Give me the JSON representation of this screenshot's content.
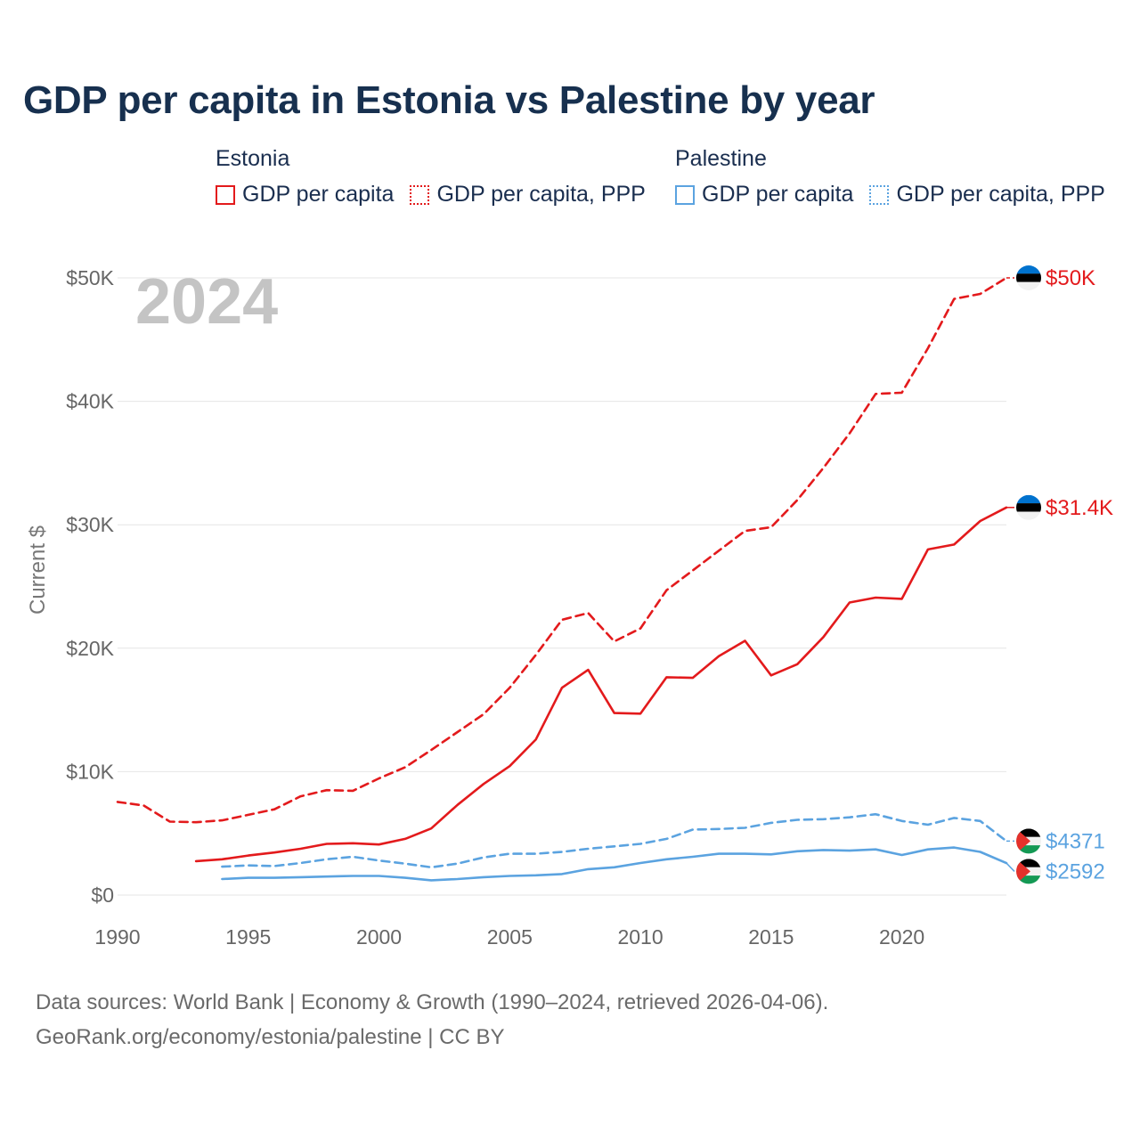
{
  "title": "GDP per capita in Estonia vs Palestine by year",
  "legend": {
    "groups": [
      {
        "name": "Estonia",
        "color": "#e31a1c",
        "items": [
          "GDP per capita",
          "GDP per capita, PPP"
        ]
      },
      {
        "name": "Palestine",
        "color": "#5ba3e0",
        "items": [
          "GDP per capita",
          "GDP per capita, PPP"
        ]
      }
    ]
  },
  "year_label": "2024",
  "footer": {
    "line1": "Data sources: World Bank | Economy & Growth (1990–2024, retrieved 2026-04-06).",
    "line2": "GeoRank.org/economy/estonia/palestine | CC BY"
  },
  "chart_data": {
    "type": "line",
    "title": "GDP per capita in Estonia vs Palestine by year",
    "ylabel": "Current $",
    "xlabel": "",
    "xlim": [
      1990,
      2024
    ],
    "ylim": [
      0,
      50000
    ],
    "x_ticks": [
      1990,
      1995,
      2000,
      2005,
      2010,
      2015,
      2020
    ],
    "y_ticks": [
      {
        "value": 0,
        "label": "$0"
      },
      {
        "value": 10000,
        "label": "$10K"
      },
      {
        "value": 20000,
        "label": "$20K"
      },
      {
        "value": 30000,
        "label": "$30K"
      },
      {
        "value": 40000,
        "label": "$40K"
      },
      {
        "value": 50000,
        "label": "$50K"
      }
    ],
    "grid": true,
    "series": [
      {
        "name": "Estonia GDP per capita, PPP",
        "country": "Estonia",
        "style": "dashed",
        "color": "#e31a1c",
        "end_label": "$50K",
        "flag": "estonia",
        "points": [
          [
            1990,
            7550
          ],
          [
            1991,
            7250
          ],
          [
            1992,
            5950
          ],
          [
            1993,
            5900
          ],
          [
            1994,
            6050
          ],
          [
            1995,
            6500
          ],
          [
            1996,
            6950
          ],
          [
            1997,
            8000
          ],
          [
            1998,
            8500
          ],
          [
            1999,
            8450
          ],
          [
            2000,
            9450
          ],
          [
            2001,
            10350
          ],
          [
            2002,
            11750
          ],
          [
            2003,
            13200
          ],
          [
            2004,
            14650
          ],
          [
            2005,
            16800
          ],
          [
            2006,
            19450
          ],
          [
            2007,
            22300
          ],
          [
            2008,
            22850
          ],
          [
            2009,
            20550
          ],
          [
            2010,
            21600
          ],
          [
            2011,
            24700
          ],
          [
            2012,
            26300
          ],
          [
            2013,
            27900
          ],
          [
            2014,
            29500
          ],
          [
            2015,
            29800
          ],
          [
            2016,
            32000
          ],
          [
            2017,
            34600
          ],
          [
            2018,
            37400
          ],
          [
            2019,
            40600
          ],
          [
            2020,
            40700
          ],
          [
            2021,
            44300
          ],
          [
            2022,
            48300
          ],
          [
            2023,
            48700
          ],
          [
            2024,
            50000
          ]
        ]
      },
      {
        "name": "Estonia GDP per capita",
        "country": "Estonia",
        "style": "solid",
        "color": "#e31a1c",
        "end_label": "$31.4K",
        "flag": "estonia",
        "points": [
          [
            1993,
            2750
          ],
          [
            1994,
            2900
          ],
          [
            1995,
            3200
          ],
          [
            1996,
            3450
          ],
          [
            1997,
            3750
          ],
          [
            1998,
            4150
          ],
          [
            1999,
            4200
          ],
          [
            2000,
            4100
          ],
          [
            2001,
            4550
          ],
          [
            2002,
            5400
          ],
          [
            2003,
            7300
          ],
          [
            2004,
            9000
          ],
          [
            2005,
            10450
          ],
          [
            2006,
            12600
          ],
          [
            2007,
            16800
          ],
          [
            2008,
            18250
          ],
          [
            2009,
            14750
          ],
          [
            2010,
            14700
          ],
          [
            2011,
            17650
          ],
          [
            2012,
            17600
          ],
          [
            2013,
            19350
          ],
          [
            2014,
            20600
          ],
          [
            2015,
            17800
          ],
          [
            2016,
            18700
          ],
          [
            2017,
            20900
          ],
          [
            2018,
            23700
          ],
          [
            2019,
            24100
          ],
          [
            2020,
            24000
          ],
          [
            2021,
            28000
          ],
          [
            2022,
            28400
          ],
          [
            2023,
            30300
          ],
          [
            2024,
            31400
          ]
        ]
      },
      {
        "name": "Palestine GDP per capita, PPP",
        "country": "Palestine",
        "style": "dashed",
        "color": "#5ba3e0",
        "end_label": "$4371",
        "flag": "palestine",
        "points": [
          [
            1994,
            2300
          ],
          [
            1995,
            2400
          ],
          [
            1996,
            2350
          ],
          [
            1997,
            2600
          ],
          [
            1998,
            2900
          ],
          [
            1999,
            3100
          ],
          [
            2000,
            2800
          ],
          [
            2001,
            2550
          ],
          [
            2002,
            2250
          ],
          [
            2003,
            2550
          ],
          [
            2004,
            3050
          ],
          [
            2005,
            3350
          ],
          [
            2006,
            3350
          ],
          [
            2007,
            3500
          ],
          [
            2008,
            3750
          ],
          [
            2009,
            3950
          ],
          [
            2010,
            4150
          ],
          [
            2011,
            4550
          ],
          [
            2012,
            5300
          ],
          [
            2013,
            5350
          ],
          [
            2014,
            5450
          ],
          [
            2015,
            5850
          ],
          [
            2016,
            6100
          ],
          [
            2017,
            6150
          ],
          [
            2018,
            6300
          ],
          [
            2019,
            6550
          ],
          [
            2020,
            6000
          ],
          [
            2021,
            5700
          ],
          [
            2022,
            6250
          ],
          [
            2023,
            6000
          ],
          [
            2024,
            4371
          ]
        ]
      },
      {
        "name": "Palestine GDP per capita",
        "country": "Palestine",
        "style": "solid",
        "color": "#5ba3e0",
        "end_label": "$2592",
        "flag": "palestine",
        "points": [
          [
            1994,
            1300
          ],
          [
            1995,
            1400
          ],
          [
            1996,
            1400
          ],
          [
            1997,
            1450
          ],
          [
            1998,
            1500
          ],
          [
            1999,
            1550
          ],
          [
            2000,
            1550
          ],
          [
            2001,
            1400
          ],
          [
            2002,
            1200
          ],
          [
            2003,
            1300
          ],
          [
            2004,
            1450
          ],
          [
            2005,
            1550
          ],
          [
            2006,
            1600
          ],
          [
            2007,
            1700
          ],
          [
            2008,
            2100
          ],
          [
            2009,
            2250
          ],
          [
            2010,
            2600
          ],
          [
            2011,
            2900
          ],
          [
            2012,
            3100
          ],
          [
            2013,
            3350
          ],
          [
            2014,
            3350
          ],
          [
            2015,
            3300
          ],
          [
            2016,
            3550
          ],
          [
            2017,
            3650
          ],
          [
            2018,
            3600
          ],
          [
            2019,
            3700
          ],
          [
            2020,
            3250
          ],
          [
            2021,
            3700
          ],
          [
            2022,
            3850
          ],
          [
            2023,
            3500
          ],
          [
            2024,
            2592
          ]
        ]
      }
    ]
  }
}
